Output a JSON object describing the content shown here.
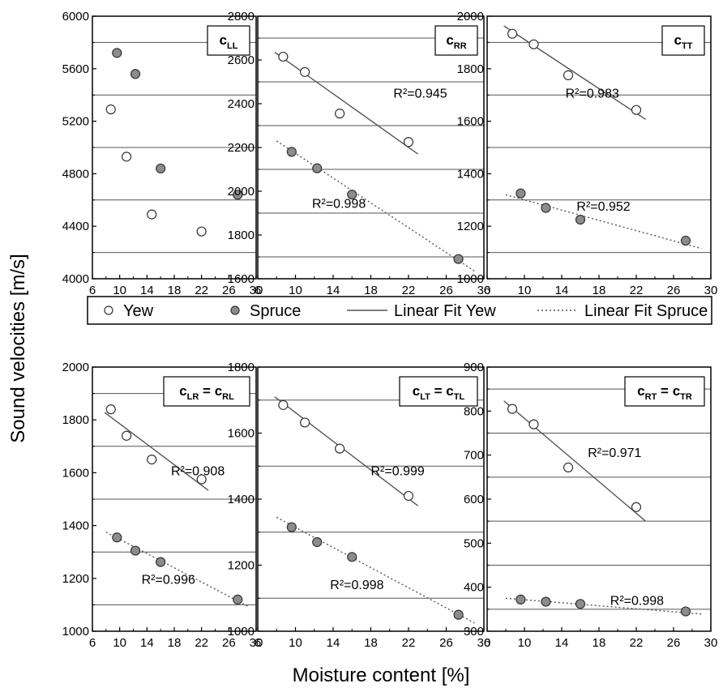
{
  "figure": {
    "ylabel": "Sound velocities [m/s]",
    "xlabel": "Moisture content [%]",
    "colors": {
      "yew_fill": "#ffffff",
      "spruce_fill": "#8c8c8c",
      "marker_stroke": "#333333",
      "grid": "#555555",
      "fit": "#555555"
    },
    "legend": {
      "items": [
        {
          "label": "Yew",
          "kind": "marker-open"
        },
        {
          "label": "Spruce",
          "kind": "marker-filled"
        },
        {
          "label": "Linear Fit Yew",
          "kind": "line-solid"
        },
        {
          "label": "Linear Fit Spruce",
          "kind": "line-dotted"
        }
      ]
    }
  },
  "chart_data": [
    {
      "type": "scatter",
      "label_main": "c",
      "label_sub": "LL",
      "xlim": [
        6,
        30
      ],
      "xticks": [
        6,
        10,
        14,
        18,
        22,
        26,
        30
      ],
      "ylim": [
        4000,
        6000
      ],
      "yticks": [
        4000,
        4400,
        4800,
        5200,
        5600,
        6000
      ],
      "grid_y": [
        4200,
        4600,
        5000,
        5400,
        5800
      ],
      "series": [
        {
          "name": "Yew",
          "x": [
            8.7,
            11.0,
            14.7,
            22.0
          ],
          "y": [
            5290,
            4930,
            4490,
            4360
          ]
        },
        {
          "name": "Spruce",
          "x": [
            9.6,
            12.3,
            16.0,
            27.3
          ],
          "y": [
            5720,
            5560,
            4840,
            4640
          ]
        }
      ],
      "fits": []
    },
    {
      "type": "scatter",
      "label_main": "c",
      "label_sub": "RR",
      "xlim": [
        6,
        30
      ],
      "xticks": [
        6,
        10,
        14,
        18,
        22,
        26,
        30
      ],
      "ylim": [
        1600,
        2800
      ],
      "yticks": [
        1600,
        1800,
        2000,
        2200,
        2400,
        2600,
        2800
      ],
      "grid_y": [
        1700,
        1900,
        2100,
        2300,
        2500,
        2700
      ],
      "series": [
        {
          "name": "Yew",
          "x": [
            8.7,
            11.0,
            14.7,
            22.0
          ],
          "y": [
            2615,
            2545,
            2355,
            2225
          ]
        },
        {
          "name": "Spruce",
          "x": [
            9.6,
            12.3,
            16.0,
            27.3
          ],
          "y": [
            2180,
            2105,
            1985,
            1690
          ]
        }
      ],
      "fits": [
        {
          "series": "Yew",
          "x": [
            7.8,
            23.0
          ],
          "y": [
            2635,
            2170
          ],
          "r2": "R²=0.945"
        },
        {
          "series": "Spruce",
          "x": [
            8.0,
            29.0
          ],
          "y": [
            2230,
            1635
          ],
          "r2": "R²=0.998"
        }
      ]
    },
    {
      "type": "scatter",
      "label_main": "c",
      "label_sub": "TT",
      "xlim": [
        6,
        30
      ],
      "xticks": [
        6,
        10,
        14,
        18,
        22,
        26,
        30
      ],
      "ylim": [
        1000,
        2000
      ],
      "yticks": [
        1000,
        1200,
        1400,
        1600,
        1800,
        2000
      ],
      "grid_y": [
        1100,
        1300,
        1500,
        1700,
        1900
      ],
      "series": [
        {
          "name": "Yew",
          "x": [
            8.7,
            11.0,
            14.7,
            22.0
          ],
          "y": [
            1933,
            1893,
            1775,
            1643
          ]
        },
        {
          "name": "Spruce",
          "x": [
            9.6,
            12.3,
            16.0,
            27.3
          ],
          "y": [
            1325,
            1270,
            1225,
            1145
          ]
        }
      ],
      "fits": [
        {
          "series": "Yew",
          "x": [
            7.8,
            23.0
          ],
          "y": [
            1963,
            1607
          ],
          "r2": "R²=0.983"
        },
        {
          "series": "Spruce",
          "x": [
            8.0,
            29.0
          ],
          "y": [
            1320,
            1115
          ],
          "r2": "R²=0.952"
        }
      ]
    },
    {
      "type": "scatter",
      "label_main": "c",
      "label_sub": "LR",
      "label_main2": "c",
      "label_sub2": "RL",
      "xlim": [
        6,
        30
      ],
      "xticks": [
        6,
        10,
        14,
        18,
        22,
        26,
        30
      ],
      "ylim": [
        1000,
        2000
      ],
      "yticks": [
        1000,
        1200,
        1400,
        1600,
        1800,
        2000
      ],
      "grid_y": [
        1100,
        1300,
        1500,
        1700,
        1900
      ],
      "series": [
        {
          "name": "Yew",
          "x": [
            8.7,
            11.0,
            14.7,
            22.0
          ],
          "y": [
            1840,
            1740,
            1650,
            1575
          ]
        },
        {
          "name": "Spruce",
          "x": [
            9.6,
            12.3,
            16.0,
            27.3
          ],
          "y": [
            1355,
            1305,
            1262,
            1120
          ]
        }
      ],
      "fits": [
        {
          "series": "Yew",
          "x": [
            7.8,
            23.0
          ],
          "y": [
            1828,
            1533
          ],
          "r2": "R²=0.908"
        },
        {
          "series": "Spruce",
          "x": [
            8.0,
            29.0
          ],
          "y": [
            1375,
            1092
          ],
          "r2": "R²=0.996"
        }
      ]
    },
    {
      "type": "scatter",
      "label_main": "c",
      "label_sub": "LT",
      "label_main2": "c",
      "label_sub2": "TL",
      "xlim": [
        6,
        30
      ],
      "xticks": [
        6,
        10,
        14,
        18,
        22,
        26,
        30
      ],
      "ylim": [
        1000,
        1800
      ],
      "yticks": [
        1000,
        1200,
        1400,
        1600,
        1800
      ],
      "grid_y": [
        1100,
        1300,
        1500,
        1700
      ],
      "series": [
        {
          "name": "Yew",
          "x": [
            8.7,
            11.0,
            14.7,
            22.0
          ],
          "y": [
            1685,
            1632,
            1553,
            1410
          ]
        },
        {
          "name": "Spruce",
          "x": [
            9.6,
            12.3,
            16.0,
            27.3
          ],
          "y": [
            1315,
            1270,
            1225,
            1050
          ]
        }
      ],
      "fits": [
        {
          "series": "Yew",
          "x": [
            7.8,
            23.0
          ],
          "y": [
            1710,
            1380
          ],
          "r2": "R²=0.999"
        },
        {
          "series": "Spruce",
          "x": [
            8.0,
            29.0
          ],
          "y": [
            1345,
            1025
          ],
          "r2": "R²=0.998"
        }
      ]
    },
    {
      "type": "scatter",
      "label_main": "c",
      "label_sub": "RT",
      "label_main2": "c",
      "label_sub2": "TR",
      "xlim": [
        6,
        30
      ],
      "xticks": [
        6,
        10,
        14,
        18,
        22,
        26,
        30
      ],
      "ylim": [
        300,
        900
      ],
      "yticks": [
        300,
        400,
        500,
        600,
        700,
        800,
        900
      ],
      "grid_y": [
        350,
        450,
        550,
        650,
        750,
        850
      ],
      "series": [
        {
          "name": "Yew",
          "x": [
            8.7,
            11.0,
            14.7,
            22.0
          ],
          "y": [
            805,
            770,
            672,
            582
          ]
        },
        {
          "name": "Spruce",
          "x": [
            9.6,
            12.3,
            16.0,
            27.3
          ],
          "y": [
            372,
            367,
            362,
            345
          ]
        }
      ],
      "fits": [
        {
          "series": "Yew",
          "x": [
            7.8,
            23.0
          ],
          "y": [
            823,
            550
          ],
          "r2": "R²=0.971"
        },
        {
          "series": "Spruce",
          "x": [
            8.0,
            29.0
          ],
          "y": [
            375,
            339
          ],
          "r2": "R²=0.998"
        }
      ]
    }
  ]
}
